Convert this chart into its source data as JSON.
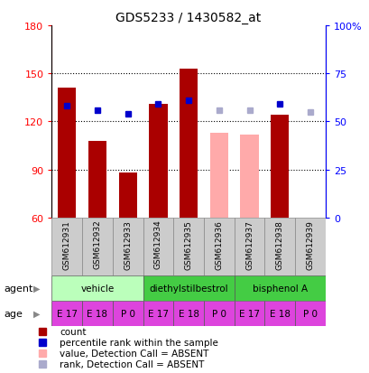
{
  "title": "GDS5233 / 1430582_at",
  "samples": [
    "GSM612931",
    "GSM612932",
    "GSM612933",
    "GSM612934",
    "GSM612935",
    "GSM612936",
    "GSM612937",
    "GSM612938",
    "GSM612939"
  ],
  "bar_values": [
    141,
    108,
    88,
    131,
    153,
    113,
    112,
    124,
    60
  ],
  "bar_absent": [
    false,
    false,
    false,
    false,
    false,
    true,
    true,
    false,
    false
  ],
  "rank_values": [
    130,
    127,
    125,
    131,
    133,
    127,
    127,
    131,
    126
  ],
  "rank_absent": [
    false,
    false,
    false,
    false,
    false,
    true,
    true,
    false,
    true
  ],
  "bar_color_present": "#aa0000",
  "bar_color_absent": "#ffaaaa",
  "rank_color_present": "#0000cc",
  "rank_color_absent": "#aaaacc",
  "ylim_left": [
    60,
    180
  ],
  "ylim_right": [
    0,
    100
  ],
  "yticks_left": [
    60,
    90,
    120,
    150,
    180
  ],
  "ytick_labels_left": [
    "60",
    "90",
    "120",
    "150",
    "180"
  ],
  "ytick_labels_right": [
    "0",
    "25",
    "50",
    "75",
    "100%"
  ],
  "yticks_right": [
    0,
    25,
    50,
    75,
    100
  ],
  "gridlines": [
    90,
    120,
    150
  ],
  "agents": [
    {
      "label": "vehicle",
      "start": 0,
      "end": 3,
      "color": "#bbffbb"
    },
    {
      "label": "diethylstilbestrol",
      "start": 3,
      "end": 6,
      "color": "#44cc44"
    },
    {
      "label": "bisphenol A",
      "start": 6,
      "end": 9,
      "color": "#44cc44"
    }
  ],
  "ages": [
    "E 17",
    "E 18",
    "P 0",
    "E 17",
    "E 18",
    "P 0",
    "E 17",
    "E 18",
    "P 0"
  ],
  "age_color": "#dd44dd",
  "legend_items": [
    {
      "label": "count",
      "color": "#aa0000"
    },
    {
      "label": "percentile rank within the sample",
      "color": "#0000cc"
    },
    {
      "label": "value, Detection Call = ABSENT",
      "color": "#ffaaaa"
    },
    {
      "label": "rank, Detection Call = ABSENT",
      "color": "#aaaacc"
    }
  ]
}
